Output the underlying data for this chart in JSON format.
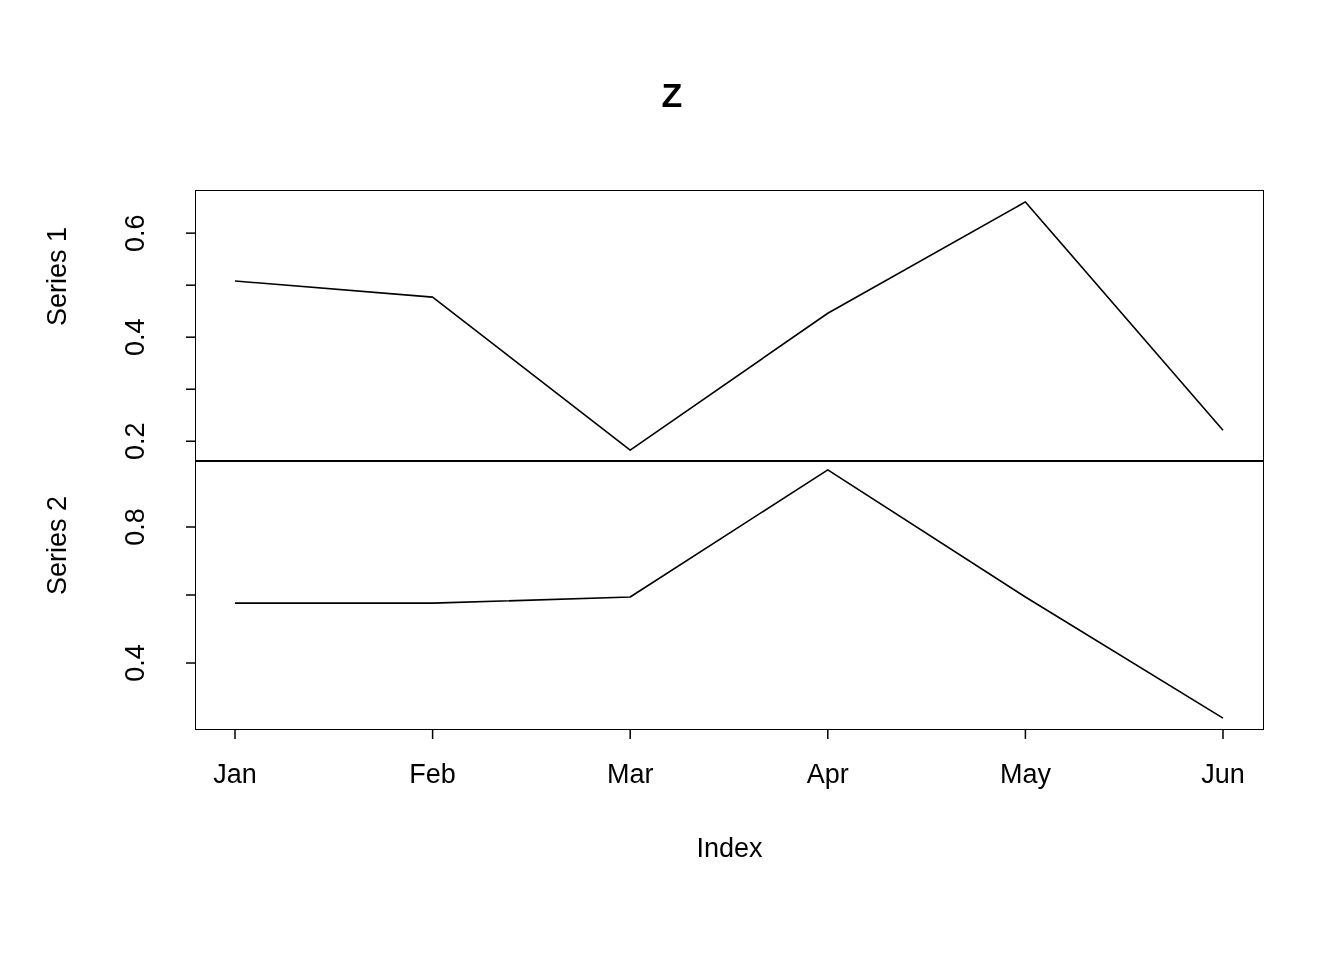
{
  "chart_data": [
    {
      "type": "line",
      "title": "Z",
      "ylabel": "Series 1",
      "categories": [
        null,
        null,
        null,
        null,
        null,
        null
      ],
      "series": [
        {
          "color": "#000000",
          "values": [
            0.508,
            0.477,
            0.183,
            0.446,
            0.66,
            0.221
          ]
        }
      ],
      "ylim": [
        0.162,
        0.681
      ],
      "yticks": [
        0.2,
        {
          "value": 0.3,
          "label": null
        },
        0.4,
        {
          "value": 0.5,
          "label": null
        },
        0.6
      ],
      "tick_labels": "y",
      "grid": false,
      "legend": false
    },
    {
      "type": "line",
      "xlabel": "Index",
      "ylabel": "Series 2",
      "categories": [
        "Jan",
        "Feb",
        "Mar",
        "Apr",
        "May",
        "Jun"
      ],
      "series": [
        {
          "color": "#000000",
          "values": [
            0.576,
            0.576,
            0.594,
            0.968,
            0.594,
            0.238
          ]
        }
      ],
      "ylim": [
        0.206,
        0.994
      ],
      "yticks": [
        0.4,
        {
          "value": 0.6,
          "label": null
        },
        0.8
      ],
      "grid": false,
      "legend": false
    }
  ]
}
